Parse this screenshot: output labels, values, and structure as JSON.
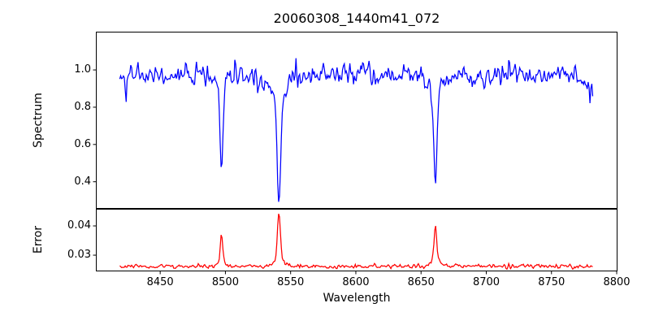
{
  "title": "20060308_1440m41_072",
  "axes": {
    "xlabel": "Wavelength",
    "xlim": [
      8401.0,
      8800.3
    ],
    "xtick_values": [
      8450,
      8500,
      8550,
      8600,
      8650,
      8700,
      8750,
      8800
    ],
    "xtick_labels": [
      "8450",
      "8500",
      "8550",
      "8600",
      "8650",
      "8700",
      "8750",
      "8800"
    ],
    "spectrum_panel": {
      "ylabel": "Spectrum",
      "ylim": [
        0.257,
        1.203
      ],
      "ytick_values": [
        0.4,
        0.6,
        0.8,
        1.0
      ],
      "ytick_labels": [
        "0.4",
        "0.6",
        "0.8",
        "1.0"
      ]
    },
    "error_panel": {
      "ylabel": "Error",
      "ylim": [
        0.0246,
        0.0457
      ],
      "ytick_values": [
        0.03,
        0.04
      ],
      "ytick_labels": [
        "0.03",
        "0.04"
      ]
    },
    "spine_color": "#000000",
    "tick_color": "#000000"
  },
  "chart_data": {
    "type": "line",
    "title": "20060308_1440m41_072",
    "xlabel": "Wavelength",
    "x_start": 8419.0,
    "x_step": 0.7,
    "n_points": 519,
    "xlim": [
      8401.0,
      8800.3
    ],
    "series": [
      {
        "name": "spectrum",
        "panel": "top",
        "color": "#0000ff",
        "linewidth": 1.25,
        "ylim": [
          0.257,
          1.203
        ],
        "continuum": 0.968,
        "noise_std": 0.03,
        "spike_prob": 0.035,
        "spike_scale": 2.1,
        "droop_start": 8764,
        "droop_rate": 0.0038,
        "seed": 42,
        "absorption_lines": [
          {
            "center": 8497.0,
            "core_depth": 0.42,
            "core_sigma": 1.05,
            "wing_depth": 0.09,
            "wing_sigma": 3.2,
            "min_value": 0.46
          },
          {
            "center": 8541.0,
            "core_depth": 0.55,
            "core_sigma": 1.35,
            "wing_depth": 0.13,
            "wing_sigma": 4.6,
            "min_value": 0.29
          },
          {
            "center": 8661.0,
            "core_depth": 0.48,
            "core_sigma": 1.15,
            "wing_depth": 0.1,
            "wing_sigma": 3.6,
            "min_value": 0.38
          }
        ]
      },
      {
        "name": "error",
        "panel": "bottom",
        "color": "#ff0000",
        "linewidth": 1.25,
        "ylim": [
          0.0246,
          0.0457
        ],
        "baseline": 0.0262,
        "noise_std": 0.00036,
        "spike_prob": 0.03,
        "spike_scale": 1.8,
        "seed": 1337,
        "peaks": [
          {
            "center": 8497.0,
            "amp": 0.0088,
            "sigma": 0.95,
            "wing_amp": 0.0015,
            "wing_sigma": 3.0,
            "max_value": 0.0365
          },
          {
            "center": 8541.0,
            "amp": 0.0158,
            "sigma": 1.15,
            "wing_amp": 0.0024,
            "wing_sigma": 4.0,
            "max_value": 0.0444
          },
          {
            "center": 8661.0,
            "amp": 0.0114,
            "sigma": 1.0,
            "wing_amp": 0.0022,
            "wing_sigma": 3.2,
            "max_value": 0.0398
          }
        ]
      }
    ]
  },
  "layout_note": "two stacked panels sharing x-axis, ticks outward left+bottom only"
}
